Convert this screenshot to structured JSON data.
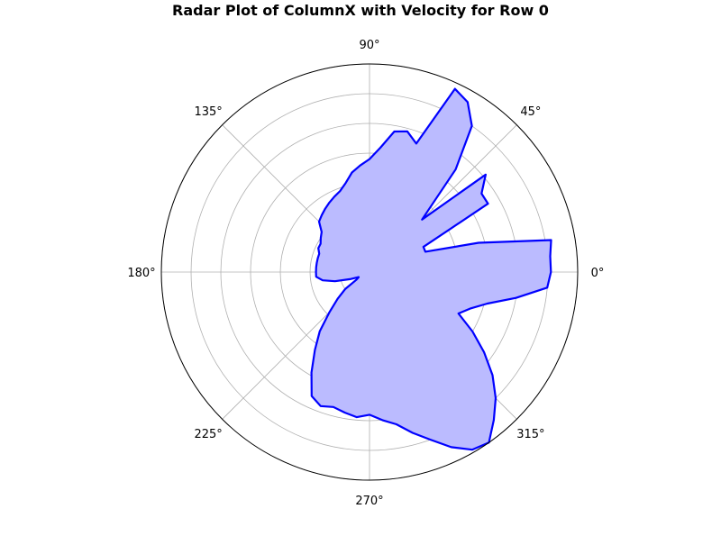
{
  "chart_data": {
    "type": "radar",
    "title": "Radar Plot of ColumnX with Velocity for Row 0",
    "angular_tick_labels": [
      "0°",
      "45°",
      "90°",
      "135°",
      "180°",
      "225°",
      "270°",
      "315°"
    ],
    "angular_ticks_deg": [
      0,
      45,
      90,
      135,
      180,
      225,
      270,
      315
    ],
    "radial_grid_rings": 7,
    "rmax": 7,
    "grid": true,
    "series": [
      {
        "color": "#0000ff",
        "fill_color": "#bbbbff",
        "theta_deg": [
          0,
          5,
          10,
          15,
          20,
          25,
          30,
          35,
          40,
          45,
          50,
          55,
          60,
          65,
          70,
          75,
          80,
          85,
          90,
          95,
          100,
          105,
          110,
          115,
          120,
          125,
          130,
          135,
          140,
          145,
          150,
          155,
          160,
          165,
          170,
          175,
          180,
          185,
          190,
          195,
          200,
          205,
          210,
          215,
          220,
          225,
          230,
          235,
          240,
          245,
          250,
          255,
          260,
          265,
          270,
          275,
          280,
          285,
          290,
          295,
          300,
          305,
          310,
          315,
          320,
          325,
          330,
          335,
          340,
          345,
          350,
          355
        ],
        "r": [
          6.1,
          6.1,
          6.2,
          3.8,
          2.0,
          2.0,
          4.6,
          4.6,
          5.1,
          2.5,
          4.5,
          6.0,
          6.6,
          6.8,
          4.6,
          4.9,
          4.8,
          4.2,
          3.8,
          3.6,
          3.4,
          3.1,
          2.9,
          2.8,
          2.7,
          2.6,
          2.5,
          2.4,
          2.1,
          2.0,
          1.9,
          1.9,
          1.8,
          1.8,
          1.8,
          1.8,
          1.8,
          1.8,
          1.6,
          1.2,
          0.7,
          0.4,
          0.5,
          1.0,
          1.4,
          1.9,
          2.6,
          3.2,
          3.9,
          4.6,
          4.8,
          4.7,
          4.8,
          4.9,
          4.8,
          5.0,
          5.2,
          5.6,
          6.0,
          6.5,
          6.9,
          7.0,
          6.5,
          6.0,
          5.4,
          4.7,
          4.0,
          3.3,
          3.6,
          4.1,
          5.0,
          6.0
        ]
      }
    ]
  }
}
